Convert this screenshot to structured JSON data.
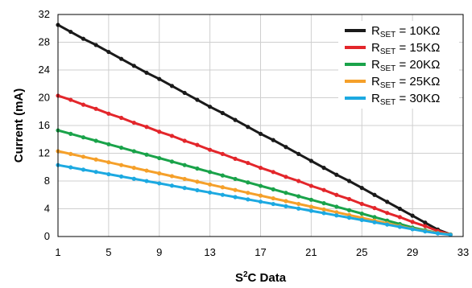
{
  "chart_data": {
    "type": "line",
    "xlabel": "S²C Data",
    "xlabel_base": "S",
    "xlabel_sup": "2",
    "xlabel_rest": "C Data",
    "ylabel": "Current (mA)",
    "xlim": [
      1,
      33
    ],
    "ylim": [
      0,
      32
    ],
    "xticks": [
      1,
      5,
      9,
      13,
      17,
      21,
      25,
      29,
      33
    ],
    "xtick_labels": [
      "1",
      "5",
      "9",
      "13",
      "17",
      "21",
      "25",
      "29",
      "33"
    ],
    "yticks": [
      0,
      4,
      8,
      12,
      16,
      20,
      24,
      28,
      32
    ],
    "ytick_labels": [
      "0",
      "4",
      "8",
      "12",
      "16",
      "20",
      "24",
      "28",
      "32"
    ],
    "grid": true,
    "legend_position": "top-right",
    "x": [
      1,
      2,
      3,
      4,
      5,
      6,
      7,
      8,
      9,
      10,
      11,
      12,
      13,
      14,
      15,
      16,
      17,
      18,
      19,
      20,
      21,
      22,
      23,
      24,
      25,
      26,
      27,
      28,
      29,
      30,
      31,
      32
    ],
    "series": [
      {
        "name": "RSET = 10KΩ",
        "legend_main": "R",
        "legend_sub": "SET",
        "legend_rest": " = 10KΩ",
        "color": "#1a1a1a",
        "values": [
          30.5,
          29.5,
          28.5,
          27.6,
          26.6,
          25.6,
          24.6,
          23.6,
          22.7,
          21.7,
          20.7,
          19.7,
          18.7,
          17.8,
          16.8,
          15.8,
          14.8,
          13.9,
          12.9,
          11.9,
          10.9,
          9.9,
          8.9,
          8.0,
          7.0,
          6.0,
          5.0,
          4.0,
          3.0,
          2.0,
          1.0,
          0.3
        ]
      },
      {
        "name": "RSET = 15KΩ",
        "legend_main": "R",
        "legend_sub": "SET",
        "legend_rest": " = 15KΩ",
        "color": "#e3262b",
        "values": [
          20.3,
          19.7,
          19.0,
          18.4,
          17.7,
          17.1,
          16.4,
          15.8,
          15.1,
          14.5,
          13.8,
          13.2,
          12.5,
          11.9,
          11.2,
          10.6,
          9.9,
          9.3,
          8.6,
          8.0,
          7.3,
          6.7,
          6.0,
          5.4,
          4.7,
          4.1,
          3.4,
          2.8,
          2.1,
          1.5,
          0.8,
          0.3
        ]
      },
      {
        "name": "RSET = 20KΩ",
        "legend_main": "R",
        "legend_sub": "SET",
        "legend_rest": " = 20KΩ",
        "color": "#1aa34a",
        "values": [
          15.3,
          14.8,
          14.3,
          13.8,
          13.3,
          12.8,
          12.3,
          11.8,
          11.3,
          10.8,
          10.3,
          9.8,
          9.3,
          8.8,
          8.3,
          7.8,
          7.3,
          6.8,
          6.3,
          5.8,
          5.3,
          4.8,
          4.3,
          3.8,
          3.3,
          2.8,
          2.3,
          1.8,
          1.3,
          0.9,
          0.5,
          0.3
        ]
      },
      {
        "name": "RSET = 25KΩ",
        "legend_main": "R",
        "legend_sub": "SET",
        "legend_rest": " = 25KΩ",
        "color": "#f5a02a",
        "values": [
          12.3,
          11.9,
          11.5,
          11.1,
          10.7,
          10.3,
          9.9,
          9.5,
          9.1,
          8.7,
          8.3,
          7.9,
          7.5,
          7.1,
          6.7,
          6.3,
          5.9,
          5.5,
          5.1,
          4.7,
          4.3,
          3.9,
          3.5,
          3.1,
          2.7,
          2.3,
          1.9,
          1.5,
          1.1,
          0.8,
          0.5,
          0.3
        ]
      },
      {
        "name": "RSET = 30KΩ",
        "legend_main": "R",
        "legend_sub": "SET",
        "legend_rest": " = 30KΩ",
        "color": "#1ca9e1",
        "values": [
          10.3,
          9.97,
          9.64,
          9.31,
          8.98,
          8.65,
          8.32,
          7.99,
          7.66,
          7.33,
          7.0,
          6.67,
          6.34,
          6.01,
          5.68,
          5.35,
          5.02,
          4.69,
          4.36,
          4.03,
          3.7,
          3.37,
          3.04,
          2.71,
          2.38,
          2.05,
          1.72,
          1.39,
          1.06,
          0.73,
          0.45,
          0.25
        ]
      }
    ]
  }
}
